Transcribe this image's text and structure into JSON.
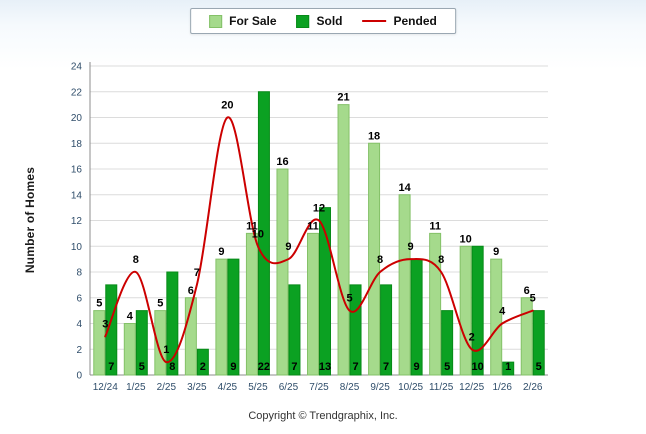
{
  "footer": "Copyright © Trendgraphix, Inc.",
  "chart_data": {
    "type": "bar+line",
    "title": "",
    "xlabel": "",
    "ylabel": "Number of Homes",
    "categories": [
      "12/24",
      "1/25",
      "2/25",
      "3/25",
      "4/25",
      "5/25",
      "6/25",
      "7/25",
      "8/25",
      "9/25",
      "10/25",
      "11/25",
      "12/25",
      "1/26",
      "2/26"
    ],
    "series": [
      {
        "name": "For Sale",
        "type": "bar",
        "color": "#A5DA8C",
        "edge_color": "#84C168",
        "values": [
          5,
          4,
          5,
          6,
          9,
          11,
          16,
          11,
          21,
          18,
          14,
          11,
          10,
          9,
          6
        ]
      },
      {
        "name": "Sold",
        "type": "bar",
        "color": "#0BA122",
        "edge_color": "#078A18",
        "values": [
          7,
          5,
          8,
          2,
          9,
          22,
          7,
          13,
          7,
          7,
          9,
          5,
          10,
          1,
          5
        ]
      },
      {
        "name": "Pended",
        "type": "line",
        "color": "#CC0000",
        "edge_color": "#CC0000",
        "values": [
          3,
          8,
          1,
          7,
          20,
          10,
          9,
          12,
          5,
          8,
          9,
          8,
          2,
          4,
          5
        ]
      }
    ],
    "ylim": [
      0,
      24
    ],
    "ytick_step": 2,
    "grid": true,
    "legend_position": "top-center",
    "label_color": "#000000",
    "tick_label_color": "#2F4D6A",
    "grid_color": "#DCDCDC",
    "axis_color": "#8C8C8C"
  }
}
